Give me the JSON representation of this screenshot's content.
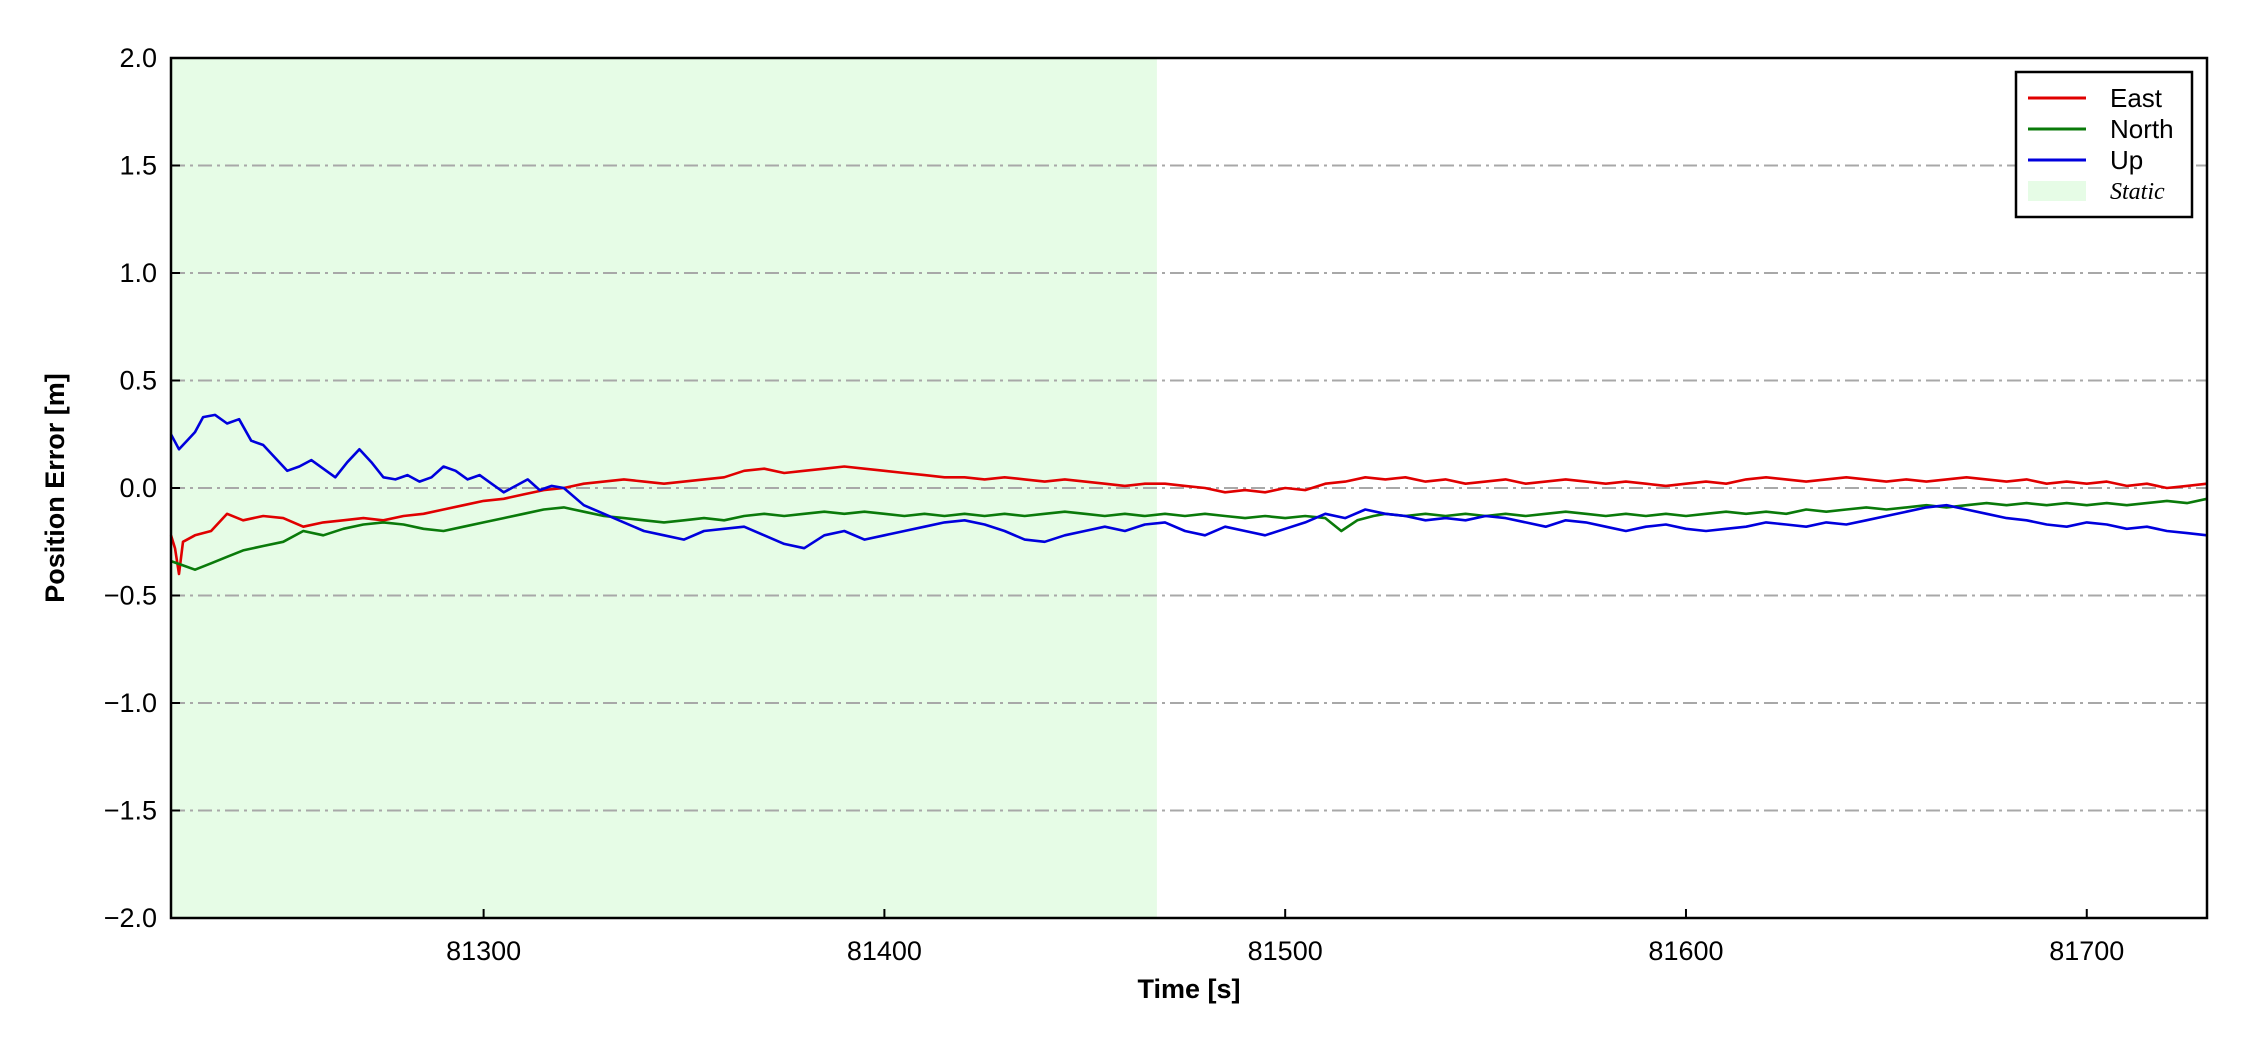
{
  "chart_data": {
    "type": "line",
    "title": "",
    "xlabel": "Time [s]",
    "ylabel": "Position Error [m]",
    "xlim": [
      81222,
      81730
    ],
    "ylim": [
      -2.0,
      2.0
    ],
    "xticks": [
      81300,
      81400,
      81500,
      81600,
      81700
    ],
    "yticks": [
      -2.0,
      -1.5,
      -1.0,
      -0.5,
      0.0,
      0.5,
      1.0,
      1.5,
      2.0
    ],
    "ytick_labels": [
      "−2.0",
      "−1.5",
      "−1.0",
      "−0.5",
      "0.0",
      "0.5",
      "1.0",
      "1.5",
      "2.0"
    ],
    "grid": "horizontal dash-dot",
    "legend_position": "top-right",
    "shaded_region": {
      "name": "Static",
      "x": [
        81222,
        81468
      ],
      "color": "#e6fce6"
    },
    "series": [
      {
        "name": "East",
        "color": "#e00000",
        "x": [
          81222,
          81223,
          81224,
          81225,
          81228,
          81232,
          81236,
          81240,
          81245,
          81250,
          81255,
          81260,
          81265,
          81270,
          81275,
          81280,
          81285,
          81290,
          81295,
          81300,
          81305,
          81310,
          81315,
          81320,
          81325,
          81330,
          81335,
          81340,
          81345,
          81350,
          81355,
          81360,
          81365,
          81370,
          81375,
          81380,
          81385,
          81390,
          81395,
          81400,
          81405,
          81410,
          81415,
          81420,
          81425,
          81430,
          81435,
          81440,
          81445,
          81450,
          81455,
          81460,
          81465,
          81470,
          81475,
          81480,
          81485,
          81490,
          81495,
          81500,
          81505,
          81510,
          81515,
          81520,
          81525,
          81530,
          81535,
          81540,
          81545,
          81550,
          81555,
          81560,
          81565,
          81570,
          81575,
          81580,
          81585,
          81590,
          81595,
          81600,
          81605,
          81610,
          81615,
          81620,
          81625,
          81630,
          81635,
          81640,
          81645,
          81650,
          81655,
          81660,
          81665,
          81670,
          81675,
          81680,
          81685,
          81690,
          81695,
          81700,
          81705,
          81710,
          81715,
          81720,
          81725,
          81730
        ],
        "values": [
          -0.22,
          -0.28,
          -0.4,
          -0.25,
          -0.22,
          -0.2,
          -0.12,
          -0.15,
          -0.13,
          -0.14,
          -0.18,
          -0.16,
          -0.15,
          -0.14,
          -0.15,
          -0.13,
          -0.12,
          -0.1,
          -0.08,
          -0.06,
          -0.05,
          -0.03,
          -0.01,
          0.0,
          0.02,
          0.03,
          0.04,
          0.03,
          0.02,
          0.03,
          0.04,
          0.05,
          0.08,
          0.09,
          0.07,
          0.08,
          0.09,
          0.1,
          0.09,
          0.08,
          0.07,
          0.06,
          0.05,
          0.05,
          0.04,
          0.05,
          0.04,
          0.03,
          0.04,
          0.03,
          0.02,
          0.01,
          0.02,
          0.02,
          0.01,
          0.0,
          -0.02,
          -0.01,
          -0.02,
          0.0,
          -0.01,
          0.02,
          0.03,
          0.05,
          0.04,
          0.05,
          0.03,
          0.04,
          0.02,
          0.03,
          0.04,
          0.02,
          0.03,
          0.04,
          0.03,
          0.02,
          0.03,
          0.02,
          0.01,
          0.02,
          0.03,
          0.02,
          0.04,
          0.05,
          0.04,
          0.03,
          0.04,
          0.05,
          0.04,
          0.03,
          0.04,
          0.03,
          0.04,
          0.05,
          0.04,
          0.03,
          0.04,
          0.02,
          0.03,
          0.02,
          0.03,
          0.01,
          0.02,
          0.0,
          0.01,
          0.02
        ]
      },
      {
        "name": "North",
        "color": "#0a7a0a",
        "x": [
          81222,
          81225,
          81228,
          81232,
          81236,
          81240,
          81245,
          81250,
          81255,
          81260,
          81265,
          81270,
          81275,
          81280,
          81285,
          81290,
          81295,
          81300,
          81305,
          81310,
          81315,
          81320,
          81325,
          81330,
          81335,
          81340,
          81345,
          81350,
          81355,
          81360,
          81365,
          81370,
          81375,
          81380,
          81385,
          81390,
          81395,
          81400,
          81405,
          81410,
          81415,
          81420,
          81425,
          81430,
          81435,
          81440,
          81445,
          81450,
          81455,
          81460,
          81465,
          81470,
          81475,
          81480,
          81485,
          81490,
          81495,
          81500,
          81505,
          81510,
          81514,
          81518,
          81522,
          81525,
          81530,
          81535,
          81540,
          81545,
          81550,
          81555,
          81560,
          81565,
          81570,
          81575,
          81580,
          81585,
          81590,
          81595,
          81600,
          81605,
          81610,
          81615,
          81620,
          81625,
          81630,
          81635,
          81640,
          81645,
          81650,
          81655,
          81660,
          81665,
          81670,
          81675,
          81680,
          81685,
          81690,
          81695,
          81700,
          81705,
          81710,
          81715,
          81720,
          81725,
          81730
        ],
        "values": [
          -0.34,
          -0.36,
          -0.38,
          -0.35,
          -0.32,
          -0.29,
          -0.27,
          -0.25,
          -0.2,
          -0.22,
          -0.19,
          -0.17,
          -0.16,
          -0.17,
          -0.19,
          -0.2,
          -0.18,
          -0.16,
          -0.14,
          -0.12,
          -0.1,
          -0.09,
          -0.11,
          -0.13,
          -0.14,
          -0.15,
          -0.16,
          -0.15,
          -0.14,
          -0.15,
          -0.13,
          -0.12,
          -0.13,
          -0.12,
          -0.11,
          -0.12,
          -0.11,
          -0.12,
          -0.13,
          -0.12,
          -0.13,
          -0.12,
          -0.13,
          -0.12,
          -0.13,
          -0.12,
          -0.11,
          -0.12,
          -0.13,
          -0.12,
          -0.13,
          -0.12,
          -0.13,
          -0.12,
          -0.13,
          -0.14,
          -0.13,
          -0.14,
          -0.13,
          -0.14,
          -0.2,
          -0.15,
          -0.13,
          -0.12,
          -0.13,
          -0.12,
          -0.13,
          -0.12,
          -0.13,
          -0.12,
          -0.13,
          -0.12,
          -0.11,
          -0.12,
          -0.13,
          -0.12,
          -0.13,
          -0.12,
          -0.13,
          -0.12,
          -0.11,
          -0.12,
          -0.11,
          -0.12,
          -0.1,
          -0.11,
          -0.1,
          -0.09,
          -0.1,
          -0.09,
          -0.08,
          -0.09,
          -0.08,
          -0.07,
          -0.08,
          -0.07,
          -0.08,
          -0.07,
          -0.08,
          -0.07,
          -0.08,
          -0.07,
          -0.06,
          -0.07,
          -0.05
        ]
      },
      {
        "name": "Up",
        "color": "#0000dd",
        "x": [
          81222,
          81224,
          81226,
          81228,
          81230,
          81233,
          81236,
          81239,
          81242,
          81245,
          81248,
          81251,
          81254,
          81257,
          81260,
          81263,
          81266,
          81269,
          81272,
          81275,
          81278,
          81281,
          81284,
          81287,
          81290,
          81293,
          81296,
          81299,
          81302,
          81305,
          81308,
          81311,
          81314,
          81317,
          81320,
          81325,
          81330,
          81335,
          81340,
          81345,
          81350,
          81355,
          81360,
          81365,
          81370,
          81375,
          81380,
          81385,
          81390,
          81395,
          81400,
          81405,
          81410,
          81415,
          81420,
          81425,
          81430,
          81435,
          81440,
          81445,
          81450,
          81455,
          81460,
          81465,
          81470,
          81475,
          81480,
          81485,
          81490,
          81495,
          81500,
          81505,
          81510,
          81515,
          81520,
          81525,
          81530,
          81535,
          81540,
          81545,
          81550,
          81555,
          81560,
          81565,
          81570,
          81575,
          81580,
          81585,
          81590,
          81595,
          81600,
          81605,
          81610,
          81615,
          81620,
          81625,
          81630,
          81635,
          81640,
          81645,
          81650,
          81655,
          81660,
          81665,
          81670,
          81675,
          81680,
          81685,
          81690,
          81695,
          81700,
          81705,
          81710,
          81715,
          81720,
          81725,
          81730
        ],
        "values": [
          0.25,
          0.18,
          0.22,
          0.26,
          0.33,
          0.34,
          0.3,
          0.32,
          0.22,
          0.2,
          0.14,
          0.08,
          0.1,
          0.13,
          0.09,
          0.05,
          0.12,
          0.18,
          0.12,
          0.05,
          0.04,
          0.06,
          0.03,
          0.05,
          0.1,
          0.08,
          0.04,
          0.06,
          0.02,
          -0.02,
          0.01,
          0.04,
          -0.01,
          0.01,
          0.0,
          -0.08,
          -0.12,
          -0.16,
          -0.2,
          -0.22,
          -0.24,
          -0.2,
          -0.19,
          -0.18,
          -0.22,
          -0.26,
          -0.28,
          -0.22,
          -0.2,
          -0.24,
          -0.22,
          -0.2,
          -0.18,
          -0.16,
          -0.15,
          -0.17,
          -0.2,
          -0.24,
          -0.25,
          -0.22,
          -0.2,
          -0.18,
          -0.2,
          -0.17,
          -0.16,
          -0.2,
          -0.22,
          -0.18,
          -0.2,
          -0.22,
          -0.19,
          -0.16,
          -0.12,
          -0.14,
          -0.1,
          -0.12,
          -0.13,
          -0.15,
          -0.14,
          -0.15,
          -0.13,
          -0.14,
          -0.16,
          -0.18,
          -0.15,
          -0.16,
          -0.18,
          -0.2,
          -0.18,
          -0.17,
          -0.19,
          -0.2,
          -0.19,
          -0.18,
          -0.16,
          -0.17,
          -0.18,
          -0.16,
          -0.17,
          -0.15,
          -0.13,
          -0.11,
          -0.09,
          -0.08,
          -0.1,
          -0.12,
          -0.14,
          -0.15,
          -0.17,
          -0.18,
          -0.16,
          -0.17,
          -0.19,
          -0.18,
          -0.2,
          -0.21,
          -0.22
        ]
      }
    ]
  }
}
